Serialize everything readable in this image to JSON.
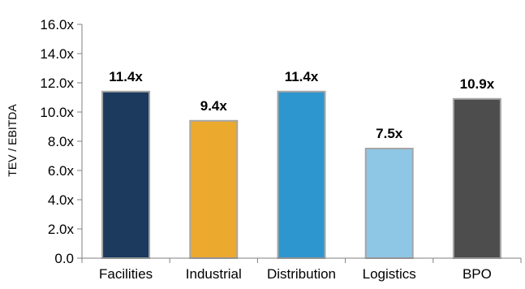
{
  "chart_data": {
    "type": "bar",
    "title": "",
    "xlabel": "",
    "ylabel": "TEV / EBITDA",
    "categories": [
      "Facilities",
      "Industrial",
      "Distribution",
      "Logistics",
      "BPO"
    ],
    "values": [
      11.4,
      9.4,
      11.4,
      7.5,
      10.9
    ],
    "value_labels": [
      "11.4x",
      "9.4x",
      "11.4x",
      "7.5x",
      "10.9x"
    ],
    "bar_colors": [
      "#1b3a5e",
      "#eba92e",
      "#2e96cf",
      "#8ec6e6",
      "#4d4d4d"
    ],
    "bar_border_color": "#a6a6a6",
    "ylim": [
      0,
      16
    ],
    "yticks": [
      0,
      2,
      4,
      6,
      8,
      10,
      12,
      14,
      16
    ],
    "ytick_labels": [
      "0.0",
      "2.0x",
      "4.0x",
      "6.0x",
      "8.0x",
      "10.0x",
      "12.0x",
      "14.0x",
      "16.0x"
    ],
    "grid": false,
    "legend": "none",
    "axis_color": "#808080"
  }
}
